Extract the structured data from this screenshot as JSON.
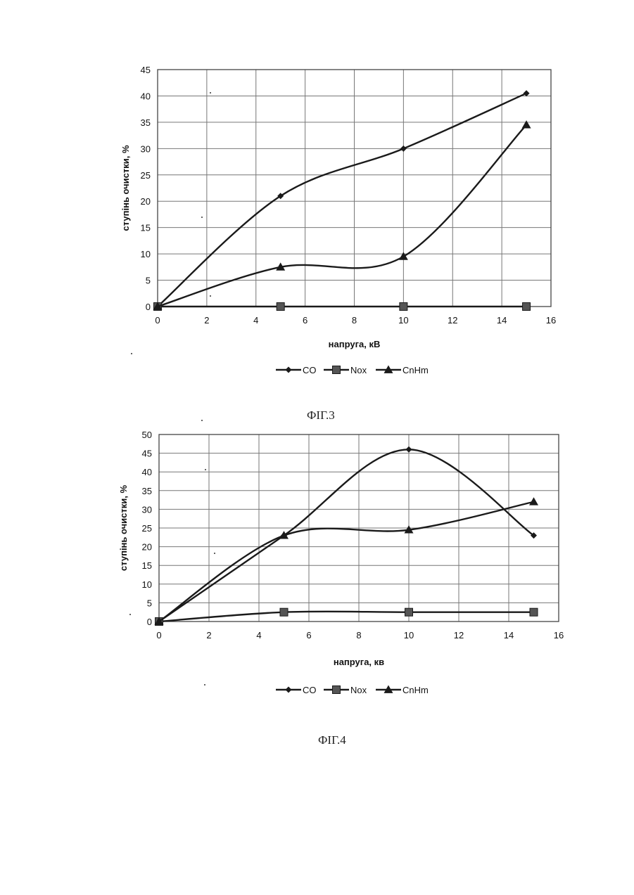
{
  "page": {
    "background": "#ffffff",
    "line_color": "#1a1a1a",
    "grid_color": "#777777"
  },
  "figures": [
    {
      "caption": "ФІГ.3"
    },
    {
      "caption": "ФІГ.4"
    }
  ],
  "chart_data": [
    {
      "type": "line",
      "title": "",
      "xlabel": "напруга, кВ",
      "ylabel": "ступінь очистки, %",
      "xlim": [
        0,
        16
      ],
      "ylim": [
        0,
        45
      ],
      "x_ticks": [
        "0",
        "2",
        "4",
        "6",
        "8",
        "10",
        "12",
        "14",
        "16"
      ],
      "y_ticks": [
        "0",
        "5",
        "10",
        "15",
        "20",
        "25",
        "30",
        "35",
        "40",
        "45"
      ],
      "grid": true,
      "smooth": true,
      "legend_position": "bottom",
      "x": [
        0,
        5,
        10,
        15
      ],
      "series": [
        {
          "name": "CO",
          "marker": "diamond",
          "values": [
            0,
            21,
            30,
            40.5
          ]
        },
        {
          "name": "Nox",
          "marker": "square",
          "values": [
            0,
            0,
            0,
            0
          ]
        },
        {
          "name": "CnHm",
          "marker": "triangle",
          "values": [
            0,
            7.5,
            9.5,
            34.5
          ]
        }
      ]
    },
    {
      "type": "line",
      "title": "",
      "xlabel": "напруга, кв",
      "ylabel": "ступінь очистки, %",
      "xlim": [
        0,
        16
      ],
      "ylim": [
        0,
        50
      ],
      "x_ticks": [
        "0",
        "2",
        "4",
        "6",
        "8",
        "10",
        "12",
        "14",
        "16"
      ],
      "y_ticks": [
        "0",
        "5",
        "10",
        "15",
        "20",
        "25",
        "30",
        "35",
        "40",
        "45",
        "50"
      ],
      "grid": true,
      "smooth": true,
      "legend_position": "bottom",
      "x": [
        0,
        5,
        10,
        15
      ],
      "series": [
        {
          "name": "CO",
          "marker": "diamond",
          "values": [
            0,
            23,
            46,
            23
          ]
        },
        {
          "name": "Nox",
          "marker": "square",
          "values": [
            0,
            2.5,
            2.5,
            2.5
          ]
        },
        {
          "name": "CnHm",
          "marker": "triangle",
          "values": [
            0,
            23,
            24.5,
            32
          ]
        }
      ]
    }
  ]
}
